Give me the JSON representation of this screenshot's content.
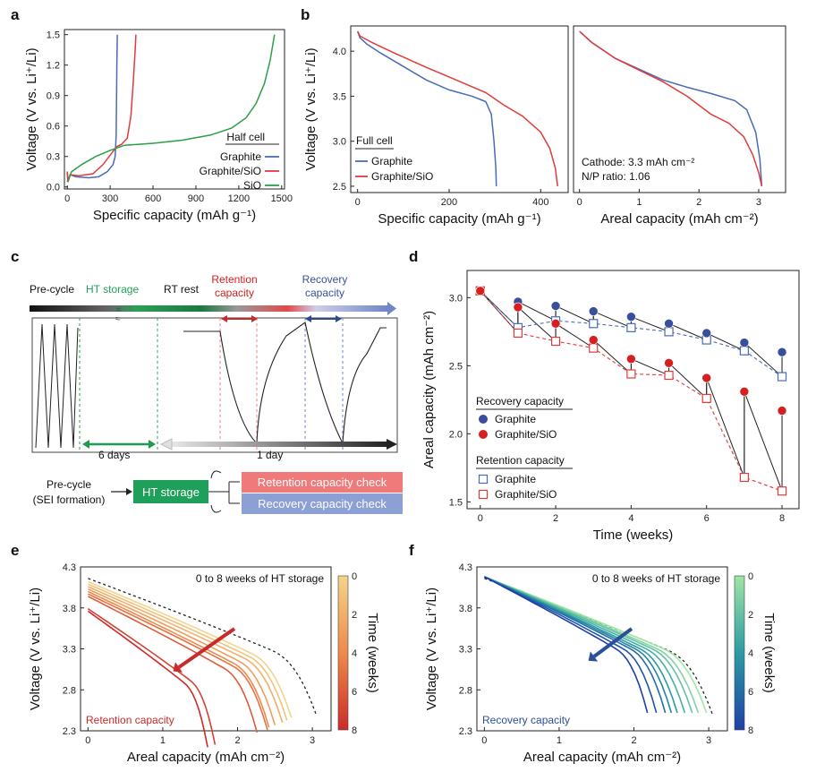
{
  "panel_labels": [
    "a",
    "b",
    "c",
    "d",
    "e",
    "f"
  ],
  "colors": {
    "graphite": "#4a6bb5",
    "graphite_sio": "#e03b3b",
    "sio": "#2aa045",
    "rec_dark": "#3a4f9c",
    "ret_dark": "#d62020",
    "ht_green": "#22a05a",
    "ret_box": "#f07a7a",
    "rec_box": "#8da0d6"
  },
  "chart_data": [
    {
      "id": "a",
      "type": "line",
      "xlabel": "Specific capacity (mAh g⁻¹)",
      "ylabel": "Voltage (V vs. Li⁺/Li)",
      "xlim": [
        -20,
        1520
      ],
      "ylim": [
        -0.02,
        1.55
      ],
      "xticks": [
        0,
        300,
        600,
        900,
        1200,
        1500
      ],
      "yticks": [
        0,
        0.3,
        0.6,
        0.9,
        1.2,
        1.5
      ],
      "legend_title": "Half cell",
      "legend": "bottom-right",
      "series": [
        {
          "name": "Graphite",
          "color_key": "graphite",
          "points": [
            [
              0,
              0.15
            ],
            [
              5,
              0.05
            ],
            [
              20,
              0.12
            ],
            [
              60,
              0.1
            ],
            [
              150,
              0.09
            ],
            [
              220,
              0.1
            ],
            [
              280,
              0.15
            ],
            [
              320,
              0.22
            ],
            [
              335,
              0.3
            ],
            [
              342,
              0.5
            ],
            [
              345,
              0.9
            ],
            [
              347,
              1.2
            ],
            [
              350,
              1.5
            ]
          ]
        },
        {
          "name": "Graphite/SiO",
          "color_key": "graphite_sio",
          "points": [
            [
              0,
              0.15
            ],
            [
              5,
              0.05
            ],
            [
              20,
              0.12
            ],
            [
              80,
              0.11
            ],
            [
              180,
              0.13
            ],
            [
              250,
              0.22
            ],
            [
              320,
              0.35
            ],
            [
              350,
              0.4
            ],
            [
              380,
              0.42
            ],
            [
              420,
              0.48
            ],
            [
              445,
              0.7
            ],
            [
              460,
              1.0
            ],
            [
              475,
              1.35
            ],
            [
              480,
              1.5
            ]
          ]
        },
        {
          "name": "SiO",
          "color_key": "sio",
          "points": [
            [
              0,
              0.05
            ],
            [
              30,
              0.15
            ],
            [
              100,
              0.22
            ],
            [
              200,
              0.3
            ],
            [
              300,
              0.36
            ],
            [
              400,
              0.41
            ],
            [
              600,
              0.43
            ],
            [
              800,
              0.46
            ],
            [
              1000,
              0.51
            ],
            [
              1150,
              0.58
            ],
            [
              1250,
              0.68
            ],
            [
              1320,
              0.82
            ],
            [
              1380,
              1.02
            ],
            [
              1420,
              1.25
            ],
            [
              1450,
              1.5
            ]
          ]
        }
      ]
    },
    {
      "id": "b1",
      "type": "line",
      "xlabel": "Specific capacity (mAh g⁻¹)",
      "ylabel": "Voltage (V vs. Li⁺/Li)",
      "xlim": [
        -15,
        460
      ],
      "ylim": [
        2.43,
        4.28
      ],
      "xticks": [
        0,
        200,
        400
      ],
      "yticks": [
        2.5,
        3.0,
        3.5,
        4.0
      ],
      "legend_title": "Full cell",
      "legend": "bottom-left",
      "series": [
        {
          "name": "Graphite",
          "color_key": "graphite",
          "points": [
            [
              0,
              4.22
            ],
            [
              5,
              4.15
            ],
            [
              20,
              4.08
            ],
            [
              50,
              3.98
            ],
            [
              100,
              3.83
            ],
            [
              150,
              3.68
            ],
            [
              200,
              3.57
            ],
            [
              250,
              3.5
            ],
            [
              280,
              3.44
            ],
            [
              292,
              3.3
            ],
            [
              298,
              3.0
            ],
            [
              302,
              2.7
            ],
            [
              303,
              2.5
            ]
          ]
        },
        {
          "name": "Graphite/SiO",
          "color_key": "graphite_sio",
          "points": [
            [
              0,
              4.22
            ],
            [
              5,
              4.17
            ],
            [
              30,
              4.1
            ],
            [
              80,
              3.98
            ],
            [
              150,
              3.82
            ],
            [
              220,
              3.67
            ],
            [
              280,
              3.54
            ],
            [
              320,
              3.4
            ],
            [
              360,
              3.28
            ],
            [
              400,
              3.1
            ],
            [
              420,
              2.92
            ],
            [
              432,
              2.7
            ],
            [
              437,
              2.5
            ]
          ]
        }
      ]
    },
    {
      "id": "b2",
      "type": "line",
      "xlabel": "Areal capacity (mAh cm⁻²)",
      "xlim": [
        -0.1,
        3.45
      ],
      "ylim": [
        2.43,
        4.28
      ],
      "xticks": [
        0,
        1,
        2,
        3
      ],
      "annotations": [
        "Cathode: 3.3 mAh cm⁻²",
        "N/P ratio: 1.06"
      ],
      "series": [
        {
          "name": "Graphite",
          "color_key": "graphite",
          "points": [
            [
              0,
              4.22
            ],
            [
              0.2,
              4.1
            ],
            [
              0.6,
              3.92
            ],
            [
              1.0,
              3.8
            ],
            [
              1.4,
              3.68
            ],
            [
              1.8,
              3.6
            ],
            [
              2.2,
              3.53
            ],
            [
              2.6,
              3.45
            ],
            [
              2.8,
              3.35
            ],
            [
              2.95,
              3.1
            ],
            [
              3.02,
              2.8
            ],
            [
              3.05,
              2.5
            ]
          ]
        },
        {
          "name": "Graphite/SiO",
          "color_key": "graphite_sio",
          "points": [
            [
              0,
              4.22
            ],
            [
              0.2,
              4.1
            ],
            [
              0.6,
              3.92
            ],
            [
              1.0,
              3.79
            ],
            [
              1.4,
              3.66
            ],
            [
              1.8,
              3.5
            ],
            [
              2.2,
              3.3
            ],
            [
              2.5,
              3.2
            ],
            [
              2.75,
              3.05
            ],
            [
              2.9,
              2.85
            ],
            [
              3.0,
              2.65
            ],
            [
              3.05,
              2.5
            ]
          ]
        }
      ]
    },
    {
      "id": "d",
      "type": "scatter",
      "xlabel": "Time (weeks)",
      "ylabel": "Areal capacity (mAh cm⁻²)",
      "xlim": [
        -0.35,
        8.45
      ],
      "ylim": [
        1.45,
        3.2
      ],
      "xticks": [
        0,
        2,
        4,
        6,
        8
      ],
      "yticks": [
        1.5,
        2.0,
        2.5,
        3.0
      ],
      "legend": "left",
      "legend_groups": [
        "Recovery capacity",
        "Retention capacity"
      ],
      "x": [
        0,
        1,
        2,
        3,
        4,
        5,
        6,
        7,
        8
      ],
      "series": [
        {
          "name": "Graphite",
          "group": "Recovery capacity",
          "color_key": "rec_dark",
          "marker": "filled-circle",
          "values": [
            3.05,
            2.97,
            2.94,
            2.9,
            2.86,
            2.81,
            2.74,
            2.67,
            2.6
          ]
        },
        {
          "name": "Graphite/SiO",
          "group": "Recovery capacity",
          "color_key": "ret_dark",
          "marker": "filled-circle",
          "values": [
            3.05,
            2.93,
            2.81,
            2.69,
            2.55,
            2.52,
            2.41,
            2.31,
            2.17
          ]
        },
        {
          "name": "Graphite",
          "group": "Retention capacity",
          "color_key": "graphite",
          "marker": "open-square",
          "values": [
            3.05,
            2.78,
            2.83,
            2.81,
            2.78,
            2.75,
            2.69,
            2.61,
            2.42
          ]
        },
        {
          "name": "Graphite/SiO",
          "group": "Retention capacity",
          "color_key": "graphite_sio",
          "marker": "open-square",
          "values": [
            3.05,
            2.74,
            2.68,
            2.63,
            2.44,
            2.43,
            2.26,
            1.68,
            1.58
          ]
        }
      ]
    },
    {
      "id": "e",
      "type": "line",
      "title": "0 to 8 weeks of HT storage",
      "xlabel": "Areal capacity (mAh cm⁻²)",
      "ylabel": "Voltage (V vs. Li⁺/Li)",
      "xlim": [
        -0.1,
        3.25
      ],
      "ylim": [
        2.3,
        4.3
      ],
      "xticks": [
        0,
        1,
        2,
        3
      ],
      "yticks": [
        2.3,
        2.8,
        3.3,
        3.8,
        4.3
      ],
      "colorbar_label": "Time (weeks)",
      "colorbar_ticks": [
        0,
        2,
        4,
        6,
        8
      ],
      "corner_label": "Retention capacity",
      "reference_end": 3.05,
      "curve_ends": [
        2.72,
        2.66,
        2.6,
        2.5,
        2.42,
        2.4,
        2.26,
        1.7,
        1.6
      ]
    },
    {
      "id": "f",
      "type": "line",
      "title": "0 to 8 weeks of HT storage",
      "xlabel": "Areal capacity (mAh cm⁻²)",
      "ylabel": "Voltage (V vs. Li⁺/Li)",
      "xlim": [
        -0.1,
        3.25
      ],
      "ylim": [
        2.3,
        4.3
      ],
      "xticks": [
        0,
        1,
        2,
        3
      ],
      "yticks": [
        2.3,
        2.8,
        3.3,
        3.8,
        4.3
      ],
      "colorbar_label": "Time (weeks)",
      "colorbar_ticks": [
        0,
        2,
        4,
        6,
        8
      ],
      "corner_label": "Recovery capacity",
      "reference_end": 3.05,
      "curve_ends": [
        2.97,
        2.86,
        2.78,
        2.68,
        2.58,
        2.5,
        2.42,
        2.3,
        2.18
      ]
    }
  ],
  "schematic": {
    "stage_labels": [
      "Pre-cycle",
      "HT storage",
      "RT rest",
      "Retention capacity",
      "Recovery capacity"
    ],
    "span_labels": [
      "6 days",
      "1 day"
    ],
    "flow": {
      "start": "Pre-cycle (SEI formation)",
      "storage": "HT storage",
      "retention_check": "Retention capacity check",
      "recovery_check": "Recovery capacity check"
    }
  }
}
